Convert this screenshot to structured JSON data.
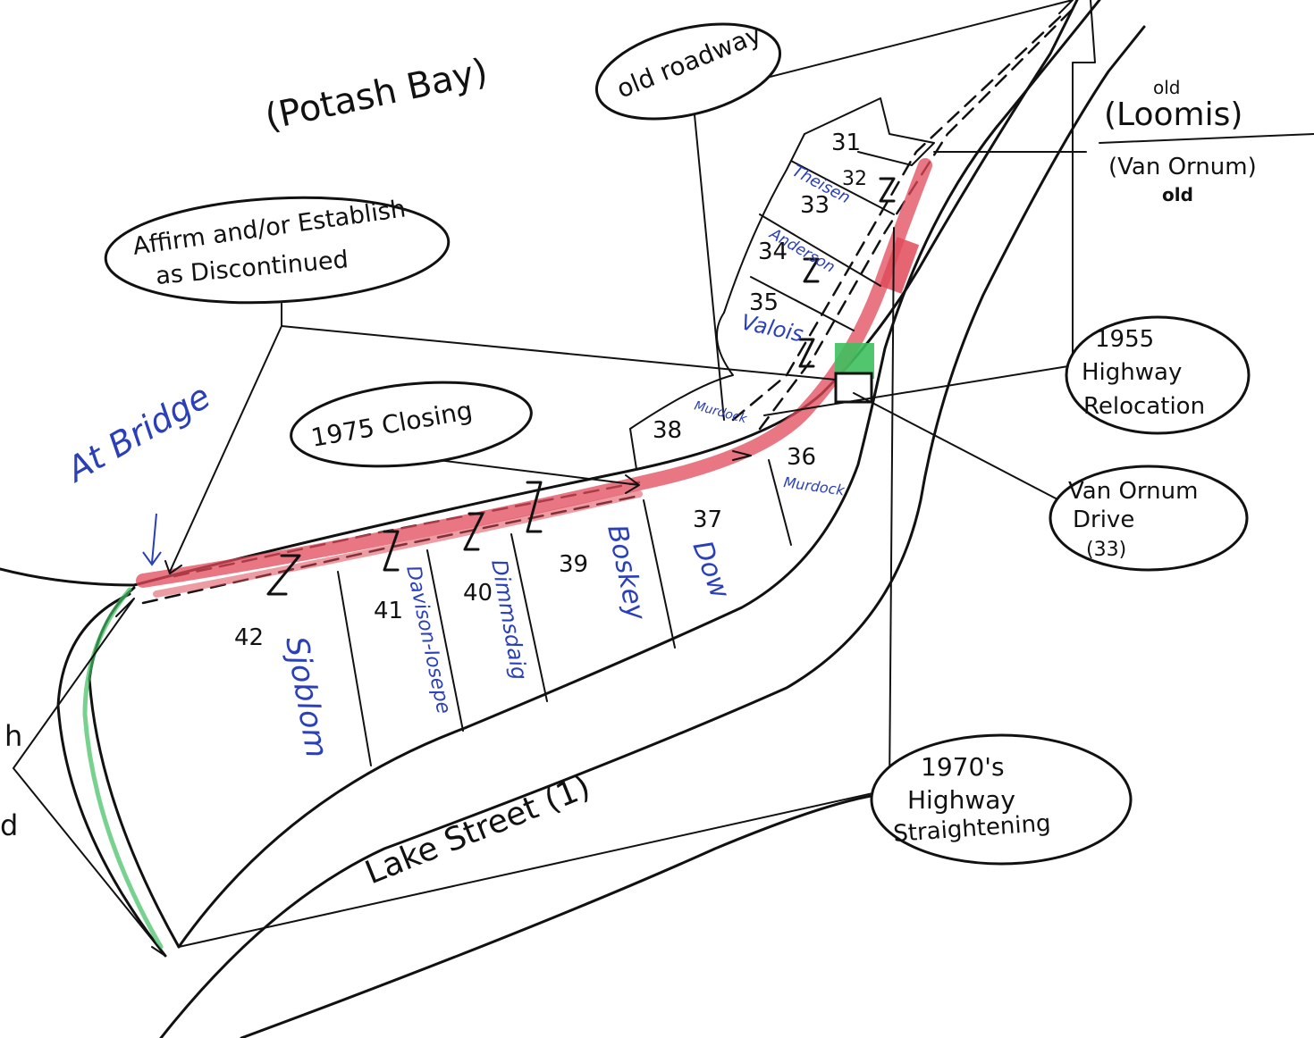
{
  "labels": {
    "potash_bay": "(Potash Bay)",
    "old_roadway": "old roadway",
    "old_small": "old",
    "loomis": "(Loomis)",
    "van_ornum_old": "(Van Ornum)",
    "old_struck": "old",
    "affirm_line1": "Affirm and/or Establish",
    "affirm_line2": "as Discontinued",
    "at_bridge": "At Bridge",
    "closing_1975": "1975 Closing",
    "relocation_line1": "1955",
    "relocation_line2": "Highway",
    "relocation_line3": "Relocation",
    "van_ornum_drive_line1": "Van Ornum",
    "van_ornum_drive_line2": "Drive",
    "van_ornum_drive_line3": "(33)",
    "straightening_line1": "1970's",
    "straightening_line2": "Highway",
    "straightening_line3": "Straightening",
    "lake_street": "Lake Street (1)",
    "edge_h": "h",
    "edge_d": "d"
  },
  "lots": [
    {
      "number": "31",
      "owner": ""
    },
    {
      "number": "32",
      "owner": ""
    },
    {
      "number": "33",
      "owner": "Theisen"
    },
    {
      "number": "34",
      "owner": "Anderson"
    },
    {
      "number": "35",
      "owner": "Valois"
    },
    {
      "number": "36",
      "owner": "Murdock"
    },
    {
      "number": "37",
      "owner": "Dow"
    },
    {
      "number": "38",
      "owner": "Murdock"
    },
    {
      "number": "39",
      "owner": "Boskey"
    },
    {
      "number": "40",
      "owner": "Dimmsdaig"
    },
    {
      "number": "41",
      "owner": "Davison-Iosepe"
    },
    {
      "number": "42",
      "owner": "Sjoblom"
    }
  ],
  "colors": {
    "ink": "#111111",
    "blue_ink": "#2a3fb8",
    "red_highlight": "#e04a5a",
    "green_highlight": "#3fbf5f"
  }
}
